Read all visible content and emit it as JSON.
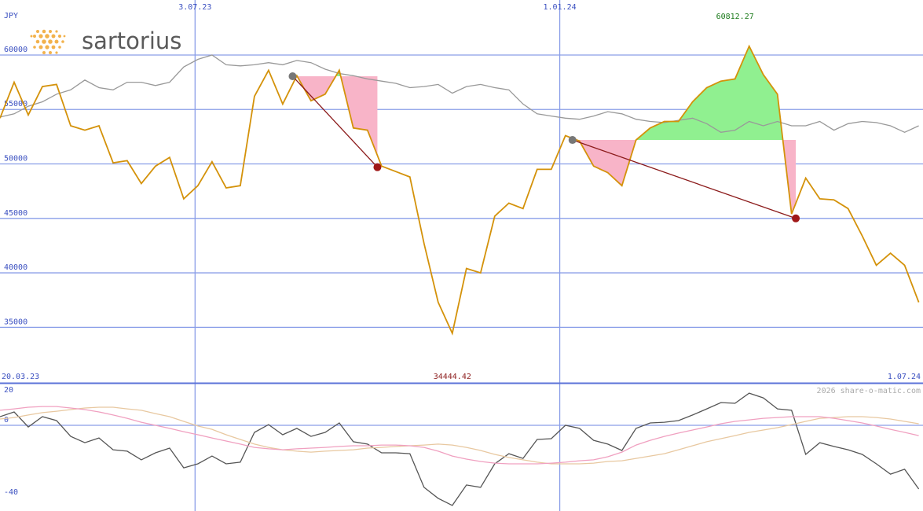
{
  "logo": "sartorius",
  "copyright": "2026 share-o-matic.com",
  "chart_data": [
    {
      "type": "line",
      "unit": "JPY",
      "x": [
        0,
        1,
        2,
        3,
        4,
        5,
        6,
        7,
        8,
        9,
        10,
        11,
        12,
        13,
        14,
        15,
        16,
        17,
        18,
        19,
        20,
        21,
        22,
        23,
        24,
        25,
        26,
        27,
        28,
        29,
        30,
        31,
        32,
        33,
        34,
        35,
        36,
        37,
        38,
        39,
        40,
        41,
        42,
        43,
        44,
        45,
        46,
        47,
        48,
        49,
        50,
        51,
        52,
        53,
        54,
        55,
        56,
        57,
        58,
        59,
        60,
        61,
        62,
        63,
        64,
        65
      ],
      "xlim": [
        0,
        65.3
      ],
      "xticks": [
        {
          "value": 13.8,
          "label": "3.07.23"
        },
        {
          "value": 39.6,
          "label": "1.01.24"
        }
      ],
      "start_label": "20.03.23",
      "end_label": "1.07.24",
      "ylim": [
        29900,
        65050
      ],
      "yticks": [
        35000,
        40000,
        45000,
        50000,
        55000,
        60000
      ],
      "grid": true,
      "series": [
        {
          "color": "#d4920a",
          "values": [
            54200,
            57500,
            54500,
            57100,
            57300,
            53500,
            53100,
            53500,
            50100,
            50300,
            48200,
            49800,
            50600,
            46800,
            48000,
            50200,
            47800,
            48000,
            56200,
            58600,
            55500,
            58100,
            55800,
            56400,
            58600,
            53300,
            53100,
            49800,
            49300,
            48800,
            42700,
            37300,
            34444.42,
            40400,
            40000,
            45200,
            46400,
            45900,
            49500,
            49500,
            52600,
            52100,
            49800,
            49200,
            48000,
            52200,
            53300,
            53900,
            53900,
            55700,
            57000,
            57600,
            57800,
            60812.27,
            58200,
            56400,
            45400,
            48700,
            46800,
            46700,
            45900,
            43400,
            40700,
            41800,
            40700,
            37300
          ]
        },
        {
          "color": "#999999",
          "values": [
            54300,
            54600,
            55300,
            55700,
            56400,
            56800,
            57700,
            57000,
            56800,
            57500,
            57500,
            57200,
            57500,
            58900,
            59600,
            60000,
            59100,
            59000,
            59100,
            59300,
            59100,
            59500,
            59300,
            58700,
            58300,
            58100,
            57800,
            57600,
            57400,
            57000,
            57100,
            57300,
            56500,
            57100,
            57300,
            57000,
            56800,
            55500,
            54600,
            54400,
            54200,
            54100,
            54400,
            54800,
            54600,
            54100,
            53900,
            53800,
            54000,
            54200,
            53700,
            52900,
            53100,
            53900,
            53500,
            53900,
            53500,
            53500,
            53900,
            53100,
            53700,
            53900,
            53800,
            53500,
            52900,
            53500
          ]
        }
      ],
      "trades": [
        {
          "x_start": 20.7,
          "value_start": 58050,
          "x_end": 26.7,
          "value_end": 49700
        },
        {
          "x_start": 40.5,
          "value_start": 52200,
          "x_end": 56.3,
          "value_end": 45000
        }
      ]
    },
    {
      "type": "line",
      "x": [
        0,
        1,
        2,
        3,
        4,
        5,
        6,
        7,
        8,
        9,
        10,
        11,
        12,
        13,
        14,
        15,
        16,
        17,
        18,
        19,
        20,
        21,
        22,
        23,
        24,
        25,
        26,
        27,
        28,
        29,
        30,
        31,
        32,
        33,
        34,
        35,
        36,
        37,
        38,
        39,
        40,
        41,
        42,
        43,
        44,
        45,
        46,
        47,
        48,
        49,
        50,
        51,
        52,
        53,
        54,
        55,
        56,
        57,
        58,
        59,
        60,
        61,
        62,
        63,
        64,
        65
      ],
      "xlim": [
        0,
        65.3
      ],
      "ylim": [
        -47.4,
        23.5
      ],
      "yticks": [
        20,
        0,
        -40
      ],
      "zero_line": true,
      "series": [
        {
          "color": "#f0a0c0",
          "values": [
            8.3,
            9.1,
            10,
            10.4,
            10.4,
            9.6,
            8.7,
            7.4,
            5.7,
            3.9,
            1.7,
            0,
            -1.7,
            -3.5,
            -5.2,
            -7,
            -8.7,
            -10.4,
            -12.2,
            -13,
            -13.5,
            -13,
            -12.6,
            -12.2,
            -11.7,
            -11.3,
            -11.3,
            -10.9,
            -10.9,
            -11.3,
            -12.2,
            -14.3,
            -17,
            -18.7,
            -20,
            -20.9,
            -21.3,
            -21.3,
            -21.3,
            -20.9,
            -20.4,
            -19.6,
            -19.1,
            -17.4,
            -14.8,
            -10.9,
            -8.3,
            -6.1,
            -4.3,
            -2.6,
            -0.9,
            0.9,
            2.2,
            3,
            3.9,
            4.3,
            4.8,
            4.8,
            4.8,
            3.9,
            2.6,
            1.3,
            -0.4,
            -2.2,
            -3.9,
            -5.7
          ]
        },
        {
          "color": "#e8c8a0",
          "values": [
            3.5,
            4.3,
            5.7,
            7,
            7.8,
            8.7,
            9.6,
            10,
            10,
            9.1,
            8.3,
            6.5,
            4.8,
            2.2,
            -0.4,
            -2.2,
            -5.2,
            -7.8,
            -10.4,
            -12.2,
            -13.5,
            -14.3,
            -14.8,
            -14.3,
            -13.9,
            -13.5,
            -12.6,
            -12.2,
            -11.7,
            -11.3,
            -10.9,
            -10.4,
            -10.9,
            -12.2,
            -13.9,
            -16.1,
            -17.8,
            -19.1,
            -20.4,
            -21.3,
            -21.3,
            -21.3,
            -20.9,
            -20,
            -19.6,
            -18.3,
            -17,
            -15.7,
            -13.5,
            -11.3,
            -9.1,
            -7.4,
            -5.7,
            -3.9,
            -2.6,
            -1.3,
            0.4,
            2.2,
            3.9,
            4.3,
            4.8,
            4.8,
            4.3,
            3.5,
            2.2,
            0.9
          ]
        },
        {
          "color": "#555555",
          "values": [
            4.8,
            7.4,
            -0.9,
            4.8,
            2.6,
            -6.1,
            -9.6,
            -7,
            -13.5,
            -14.3,
            -19.1,
            -15.2,
            -12.6,
            -23.5,
            -21.3,
            -17,
            -21.3,
            -20.4,
            -3.9,
            0.4,
            -5.2,
            -1.7,
            -6.1,
            -3.9,
            1.3,
            -9.1,
            -10.4,
            -15.2,
            -15.2,
            -15.7,
            -34.3,
            -40.4,
            -44.3,
            -33,
            -34.3,
            -21.3,
            -15.7,
            -18.3,
            -7.8,
            -7.4,
            0,
            -1.7,
            -8.3,
            -10.4,
            -13.9,
            -1.7,
            1.3,
            1.7,
            2.6,
            5.7,
            9.1,
            12.6,
            12.2,
            17.8,
            15.2,
            9.1,
            8.3,
            -16.1,
            -9.6,
            -11.7,
            -13.5,
            -16.1,
            -21.3,
            -27,
            -24.3,
            -35.2
          ]
        }
      ]
    }
  ]
}
